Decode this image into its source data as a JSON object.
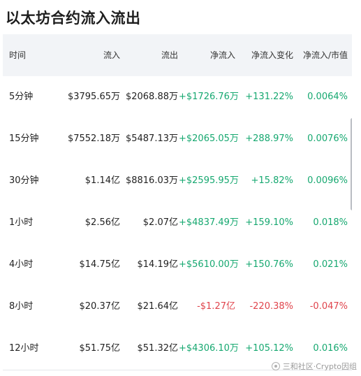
{
  "title": "以太坊合约流入流出",
  "table": {
    "headers": [
      "时间",
      "流入",
      "流出",
      "净流入",
      "净流入变化",
      "净流入/市值"
    ],
    "rows": [
      {
        "time": "5分钟",
        "inflow": "$3795.65万",
        "outflow": "$2068.88万",
        "net": "+$1726.76万",
        "change": "+131.22%",
        "ratio": "0.0064%",
        "trend": "positive"
      },
      {
        "time": "15分钟",
        "inflow": "$7552.18万",
        "outflow": "$5487.13万",
        "net": "+$2065.05万",
        "change": "+288.97%",
        "ratio": "0.0076%",
        "trend": "positive"
      },
      {
        "time": "30分钟",
        "inflow": "$1.14亿",
        "outflow": "$8816.03万",
        "net": "+$2595.95万",
        "change": "+15.82%",
        "ratio": "0.0096%",
        "trend": "positive"
      },
      {
        "time": "1小时",
        "inflow": "$2.56亿",
        "outflow": "$2.07亿",
        "net": "+$4837.49万",
        "change": "+159.10%",
        "ratio": "0.018%",
        "trend": "positive"
      },
      {
        "time": "4小时",
        "inflow": "$14.75亿",
        "outflow": "$14.19亿",
        "net": "+$5610.00万",
        "change": "+150.76%",
        "ratio": "0.021%",
        "trend": "positive"
      },
      {
        "time": "8小时",
        "inflow": "$20.37亿",
        "outflow": "$21.64亿",
        "net": "-$1.27亿",
        "change": "-220.38%",
        "ratio": "-0.047%",
        "trend": "negative"
      },
      {
        "time": "12小时",
        "inflow": "$51.75亿",
        "outflow": "$51.32亿",
        "net": "+$4306.10万",
        "change": "+105.12%",
        "ratio": "0.016%",
        "trend": "positive"
      }
    ]
  },
  "watermark": "三和社区·Crypto因组",
  "colors": {
    "positive": "#16a870",
    "negative": "#e0444c",
    "header_bg": "#f2f4f7"
  }
}
